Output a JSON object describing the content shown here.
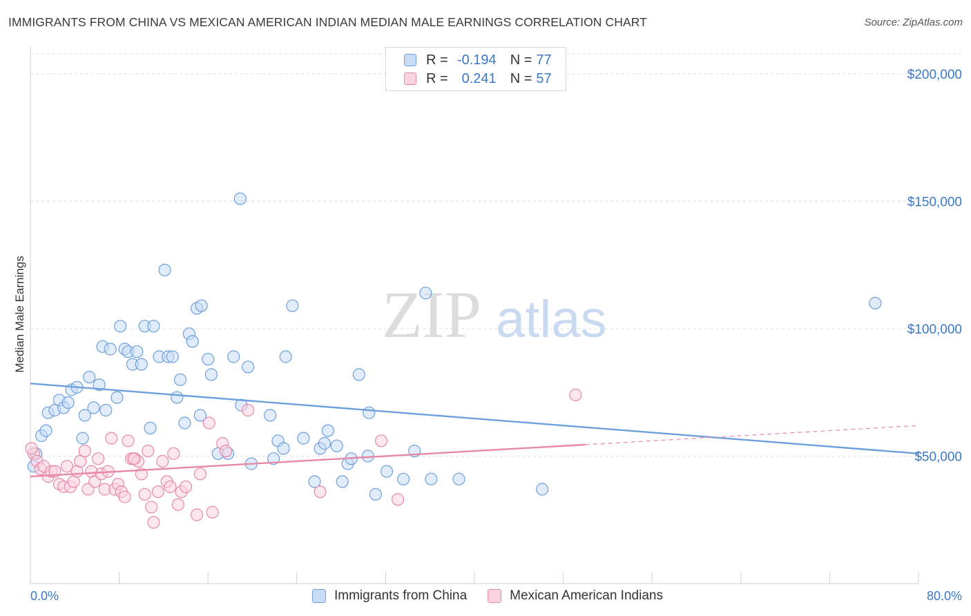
{
  "title": "IMMIGRANTS FROM CHINA VS MEXICAN AMERICAN INDIAN MEDIAN MALE EARNINGS CORRELATION CHART",
  "source": "Source: ZipAtlas.com",
  "watermark": {
    "part1": "ZIP",
    "part2": "atlas"
  },
  "legend": {
    "rows": [
      {
        "r_label": "R =",
        "r_value": "-0.194",
        "n_label": "N =",
        "n_value": "77",
        "color": "#a9c8ef",
        "border": "#6d9fdc"
      },
      {
        "r_label": "R =",
        "r_value": "0.241",
        "n_label": "N =",
        "n_value": "57",
        "color": "#f7bcd0",
        "border": "#e888a8"
      }
    ]
  },
  "bottom_legend": [
    {
      "label": "Immigrants from China",
      "color": "#c9dcf5",
      "border": "#6d9fdc"
    },
    {
      "label": "Mexican American Indians",
      "color": "#fbd3e0",
      "border": "#e888a8"
    }
  ],
  "chart_data": {
    "type": "scatter",
    "xlabel": "",
    "ylabel": "Median Male Earnings",
    "xlim": [
      0,
      80
    ],
    "ylim": [
      0,
      210000
    ],
    "x_tick_labels": {
      "min": "0.0%",
      "max": "80.0%"
    },
    "y_ticks": [
      {
        "value": 50000,
        "label": "$50,000"
      },
      {
        "value": 100000,
        "label": "$100,000"
      },
      {
        "value": 150000,
        "label": "$150,000"
      },
      {
        "value": 200000,
        "label": "$200,000"
      }
    ],
    "grid": true,
    "series": [
      {
        "name": "Immigrants from China",
        "color": "#6d9fdc",
        "fill": "#c9dcf5",
        "points": [
          [
            0.3,
            46000
          ],
          [
            0.5,
            51000
          ],
          [
            1.0,
            58000
          ],
          [
            1.4,
            60000
          ],
          [
            1.6,
            67000
          ],
          [
            2.2,
            68000
          ],
          [
            2.6,
            72000
          ],
          [
            3.0,
            69000
          ],
          [
            3.4,
            71000
          ],
          [
            3.7,
            76000
          ],
          [
            4.2,
            77000
          ],
          [
            4.7,
            57000
          ],
          [
            4.9,
            66000
          ],
          [
            5.3,
            81000
          ],
          [
            5.7,
            69000
          ],
          [
            6.2,
            78000
          ],
          [
            6.5,
            93000
          ],
          [
            6.8,
            68000
          ],
          [
            7.2,
            92000
          ],
          [
            7.8,
            73000
          ],
          [
            8.1,
            101000
          ],
          [
            8.5,
            92000
          ],
          [
            8.8,
            91000
          ],
          [
            9.2,
            86000
          ],
          [
            9.6,
            91000
          ],
          [
            10.0,
            86000
          ],
          [
            10.3,
            101000
          ],
          [
            10.8,
            61000
          ],
          [
            11.1,
            101000
          ],
          [
            11.6,
            89000
          ],
          [
            12.1,
            123000
          ],
          [
            12.4,
            89000
          ],
          [
            12.8,
            89000
          ],
          [
            13.2,
            73000
          ],
          [
            13.5,
            80000
          ],
          [
            13.9,
            63000
          ],
          [
            14.3,
            98000
          ],
          [
            14.6,
            95000
          ],
          [
            15.0,
            108000
          ],
          [
            15.4,
            109000
          ],
          [
            15.3,
            66000
          ],
          [
            16.0,
            88000
          ],
          [
            16.3,
            82000
          ],
          [
            16.9,
            51000
          ],
          [
            17.8,
            51000
          ],
          [
            18.3,
            89000
          ],
          [
            18.9,
            151000
          ],
          [
            19.0,
            70000
          ],
          [
            19.6,
            85000
          ],
          [
            19.9,
            47000
          ],
          [
            21.6,
            66000
          ],
          [
            21.9,
            49000
          ],
          [
            22.3,
            56000
          ],
          [
            22.8,
            53000
          ],
          [
            23.0,
            89000
          ],
          [
            23.6,
            109000
          ],
          [
            24.6,
            57000
          ],
          [
            25.6,
            40000
          ],
          [
            26.1,
            53000
          ],
          [
            26.5,
            55000
          ],
          [
            26.8,
            60000
          ],
          [
            27.6,
            54000
          ],
          [
            28.1,
            40000
          ],
          [
            28.6,
            47000
          ],
          [
            28.9,
            49000
          ],
          [
            29.6,
            82000
          ],
          [
            30.5,
            67000
          ],
          [
            31.1,
            35000
          ],
          [
            32.1,
            44000
          ],
          [
            33.6,
            41000
          ],
          [
            34.6,
            52000
          ],
          [
            35.6,
            114000
          ],
          [
            36.1,
            41000
          ],
          [
            38.6,
            41000
          ],
          [
            46.1,
            37000
          ],
          [
            76.1,
            110000
          ],
          [
            30.4,
            50000
          ]
        ]
      },
      {
        "name": "Mexican American Indians",
        "color": "#e888a8",
        "fill": "#fbd3e0",
        "points": [
          [
            0.3,
            51000
          ],
          [
            0.6,
            48000
          ],
          [
            0.9,
            45000
          ],
          [
            1.2,
            46000
          ],
          [
            1.6,
            42000
          ],
          [
            1.9,
            44000
          ],
          [
            2.2,
            44000
          ],
          [
            2.6,
            39000
          ],
          [
            3.0,
            38000
          ],
          [
            3.3,
            46000
          ],
          [
            3.6,
            38000
          ],
          [
            3.9,
            40000
          ],
          [
            4.2,
            44000
          ],
          [
            4.5,
            48000
          ],
          [
            4.9,
            52000
          ],
          [
            5.2,
            37000
          ],
          [
            5.5,
            44000
          ],
          [
            5.8,
            40000
          ],
          [
            6.1,
            49000
          ],
          [
            6.4,
            43000
          ],
          [
            6.7,
            37000
          ],
          [
            7.0,
            44000
          ],
          [
            7.3,
            57000
          ],
          [
            7.6,
            37000
          ],
          [
            7.9,
            39000
          ],
          [
            8.2,
            36000
          ],
          [
            8.5,
            34000
          ],
          [
            8.8,
            56000
          ],
          [
            9.1,
            49000
          ],
          [
            9.4,
            49000
          ],
          [
            9.7,
            48000
          ],
          [
            10.0,
            43000
          ],
          [
            10.3,
            35000
          ],
          [
            10.6,
            52000
          ],
          [
            10.9,
            30000
          ],
          [
            11.1,
            24000
          ],
          [
            11.5,
            36000
          ],
          [
            11.9,
            48000
          ],
          [
            12.3,
            40000
          ],
          [
            12.6,
            38000
          ],
          [
            12.9,
            51000
          ],
          [
            13.3,
            31000
          ],
          [
            13.6,
            36000
          ],
          [
            14.0,
            38000
          ],
          [
            15.0,
            27000
          ],
          [
            15.3,
            43000
          ],
          [
            16.1,
            63000
          ],
          [
            16.4,
            28000
          ],
          [
            17.3,
            55000
          ],
          [
            17.6,
            52000
          ],
          [
            19.6,
            68000
          ],
          [
            26.1,
            36000
          ],
          [
            31.6,
            56000
          ],
          [
            33.1,
            33000
          ],
          [
            49.1,
            74000
          ],
          [
            0.1,
            53000
          ],
          [
            9.3,
            49000
          ]
        ]
      }
    ],
    "trendlines": [
      {
        "series": "Immigrants from China",
        "x1": 0,
        "y1": 78500,
        "x2": 80,
        "y2": 51000,
        "style": "solid"
      },
      {
        "series": "Mexican American Indians",
        "x1": 0,
        "y1": 42000,
        "x2": 50,
        "y2": 54500,
        "style": "solid"
      },
      {
        "series": "Mexican American Indians",
        "x1": 50,
        "y1": 54500,
        "x2": 80,
        "y2": 62000,
        "style": "dashed"
      }
    ]
  }
}
